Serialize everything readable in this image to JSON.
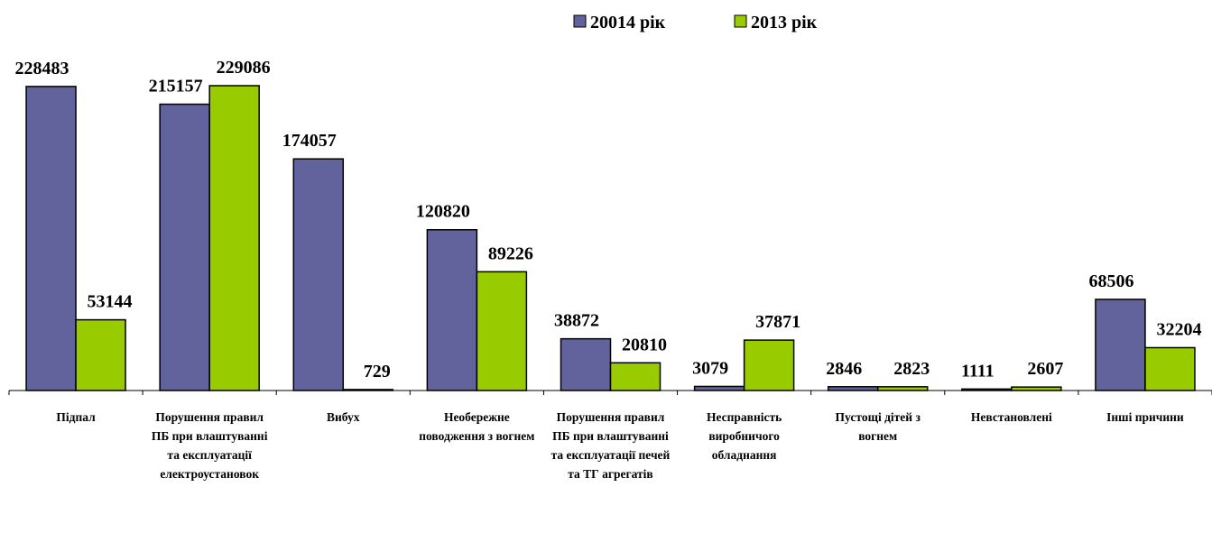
{
  "chart_data": {
    "type": "bar",
    "categories": [
      "Підпал",
      "Порушення правил ПБ при влаштуванні та експлуатації електроустановок",
      "Вибух",
      "Необережне поводження з вогнем",
      "Порушення правил ПБ при влаштуванні та експлуатації печей та ТГ агрегатів",
      "Несправність виробничого обладнання",
      "Пустощі дітей з вогнем",
      "Невстановлені",
      "Інші причини"
    ],
    "series": [
      {
        "name": "20014 рік",
        "color": "#62629c",
        "values": [
          228483,
          215157,
          174057,
          120820,
          38872,
          3079,
          2846,
          1111,
          68506
        ]
      },
      {
        "name": "2013 рік",
        "color": "#99cc00",
        "values": [
          53144,
          229086,
          729,
          89226,
          20810,
          37871,
          2823,
          2607,
          32204
        ]
      }
    ],
    "legend": "top"
  }
}
